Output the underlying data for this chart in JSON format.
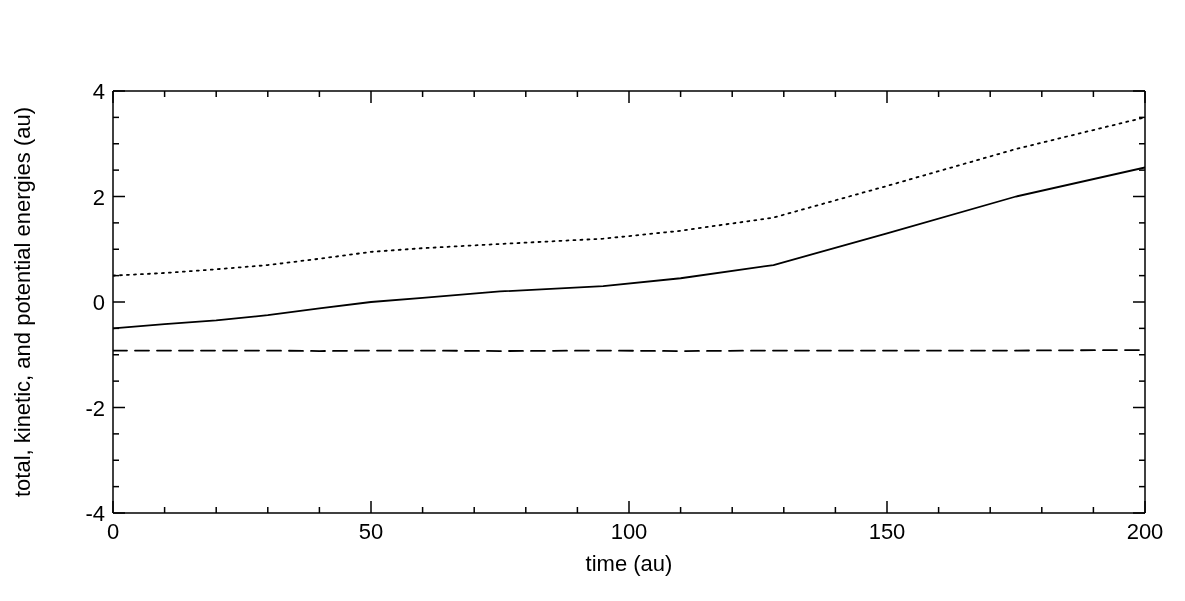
{
  "chart_data": {
    "type": "line",
    "xlabel": "time (au)",
    "ylabel": "total, kinetic, and potential energies (au)",
    "x": [
      0,
      10,
      20,
      30,
      40,
      50,
      60,
      75,
      95,
      110,
      128,
      150,
      175,
      200
    ],
    "series": [
      {
        "color": "#000000",
        "line_style": "dotted",
        "values": [
          0.5,
          0.55,
          0.62,
          0.7,
          0.82,
          0.95,
          1.02,
          1.1,
          1.2,
          1.35,
          1.6,
          2.2,
          2.9,
          3.5
        ]
      },
      {
        "color": "#000000",
        "line_style": "solid",
        "values": [
          -0.5,
          -0.42,
          -0.35,
          -0.25,
          -0.12,
          0.0,
          0.08,
          0.2,
          0.3,
          0.45,
          0.7,
          1.3,
          2.0,
          2.55
        ]
      },
      {
        "color": "#000000",
        "line_style": "dashed",
        "values": [
          -0.92,
          -0.92,
          -0.92,
          -0.92,
          -0.93,
          -0.92,
          -0.92,
          -0.93,
          -0.92,
          -0.93,
          -0.92,
          -0.92,
          -0.92,
          -0.91
        ]
      }
    ],
    "xlim": [
      0,
      200
    ],
    "xticks": [
      0,
      {
        "value": 10,
        "label": null
      },
      {
        "value": 20,
        "label": null
      },
      {
        "value": 30,
        "label": null
      },
      {
        "value": 40,
        "label": null
      },
      50,
      {
        "value": 60,
        "label": null
      },
      {
        "value": 70,
        "label": null
      },
      {
        "value": 80,
        "label": null
      },
      {
        "value": 90,
        "label": null
      },
      100,
      {
        "value": 110,
        "label": null
      },
      {
        "value": 120,
        "label": null
      },
      {
        "value": 130,
        "label": null
      },
      {
        "value": 140,
        "label": null
      },
      150,
      {
        "value": 160,
        "label": null
      },
      {
        "value": 170,
        "label": null
      },
      {
        "value": 180,
        "label": null
      },
      {
        "value": 190,
        "label": null
      },
      200
    ],
    "ylim": [
      -4,
      4
    ],
    "yticks": [
      -4,
      {
        "value": -3.5,
        "label": null
      },
      {
        "value": -3,
        "label": null
      },
      {
        "value": -2.5,
        "label": null
      },
      -2,
      {
        "value": -1.5,
        "label": null
      },
      {
        "value": -1,
        "label": null
      },
      {
        "value": -0.5,
        "label": null
      },
      0,
      {
        "value": 0.5,
        "label": null
      },
      {
        "value": 1,
        "label": null
      },
      {
        "value": 1.5,
        "label": null
      },
      2,
      {
        "value": 2.5,
        "label": null
      },
      {
        "value": 3,
        "label": null
      },
      {
        "value": 3.5,
        "label": null
      },
      4
    ],
    "marker": "none"
  }
}
